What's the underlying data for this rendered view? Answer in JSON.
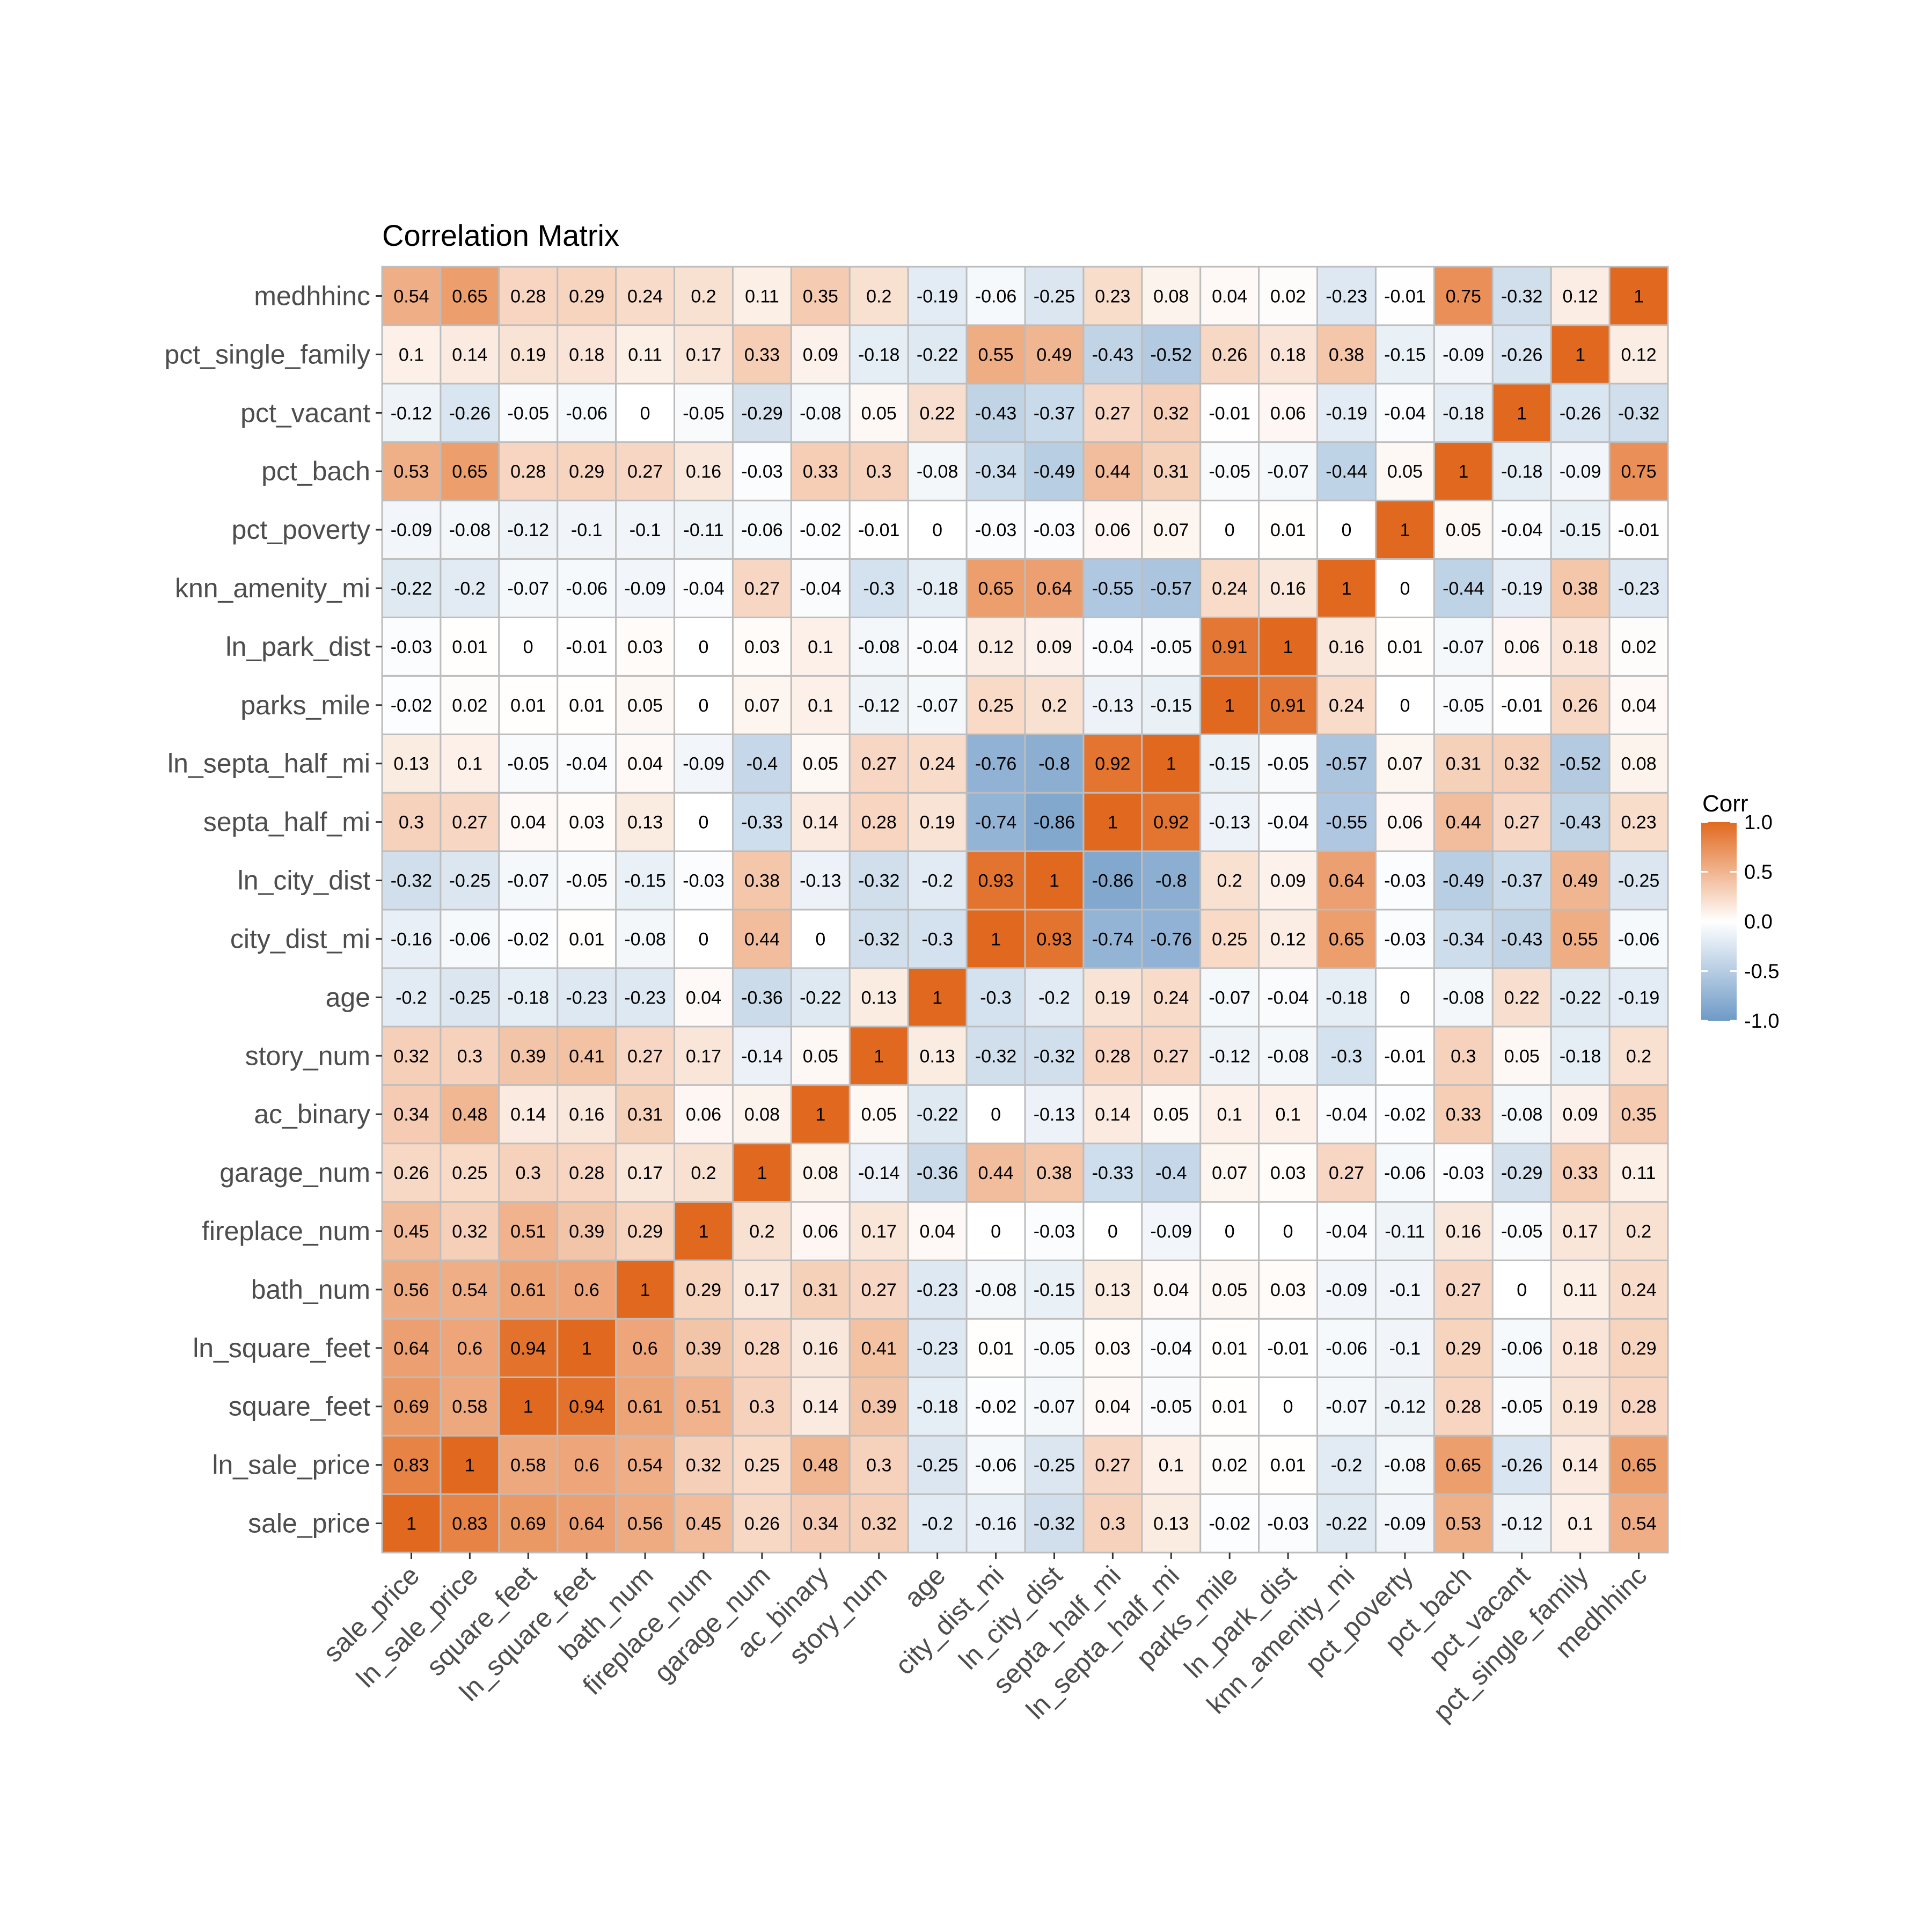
{
  "colors": {
    "low": "#6E9AC6",
    "mid": "#FFFFFF",
    "high": "#E1691F",
    "panel_bg": "#EBEBEB",
    "tile_border": "#BDBDBD"
  },
  "chart_data": {
    "type": "heatmap",
    "title": "Correlation Matrix",
    "xlabel": "",
    "ylabel": "",
    "legend": {
      "title": "Corr",
      "position": "right",
      "ticks": [
        "1.0",
        "0.5",
        "0.0",
        "-0.5",
        "-1.0"
      ],
      "range": [
        -1,
        1
      ]
    },
    "variables": [
      "sale_price",
      "ln_sale_price",
      "square_feet",
      "ln_square_feet",
      "bath_num",
      "fireplace_num",
      "garage_num",
      "ac_binary",
      "story_num",
      "age",
      "city_dist_mi",
      "ln_city_dist",
      "septa_half_mi",
      "ln_septa_half_mi",
      "parks_mile",
      "ln_park_dist",
      "knn_amenity_mi",
      "pct_poverty",
      "pct_bach",
      "pct_vacant",
      "pct_single_family",
      "medhhinc"
    ],
    "matrix": [
      [
        "1",
        "0.83",
        "0.69",
        "0.64",
        "0.56",
        "0.45",
        "0.26",
        "0.34",
        "0.32",
        "-0.2",
        "-0.16",
        "-0.32",
        "0.3",
        "0.13",
        "-0.02",
        "-0.03",
        "-0.22",
        "-0.09",
        "0.53",
        "-0.12",
        "0.1",
        "0.54"
      ],
      [
        "0.83",
        "1",
        "0.58",
        "0.6",
        "0.54",
        "0.32",
        "0.25",
        "0.48",
        "0.3",
        "-0.25",
        "-0.06",
        "-0.25",
        "0.27",
        "0.1",
        "0.02",
        "0.01",
        "-0.2",
        "-0.08",
        "0.65",
        "-0.26",
        "0.14",
        "0.65"
      ],
      [
        "0.69",
        "0.58",
        "1",
        "0.94",
        "0.61",
        "0.51",
        "0.3",
        "0.14",
        "0.39",
        "-0.18",
        "-0.02",
        "-0.07",
        "0.04",
        "-0.05",
        "0.01",
        "0",
        "-0.07",
        "-0.12",
        "0.28",
        "-0.05",
        "0.19",
        "0.28"
      ],
      [
        "0.64",
        "0.6",
        "0.94",
        "1",
        "0.6",
        "0.39",
        "0.28",
        "0.16",
        "0.41",
        "-0.23",
        "0.01",
        "-0.05",
        "0.03",
        "-0.04",
        "0.01",
        "-0.01",
        "-0.06",
        "-0.1",
        "0.29",
        "-0.06",
        "0.18",
        "0.29"
      ],
      [
        "0.56",
        "0.54",
        "0.61",
        "0.6",
        "1",
        "0.29",
        "0.17",
        "0.31",
        "0.27",
        "-0.23",
        "-0.08",
        "-0.15",
        "0.13",
        "0.04",
        "0.05",
        "0.03",
        "-0.09",
        "-0.1",
        "0.27",
        "0",
        "0.11",
        "0.24"
      ],
      [
        "0.45",
        "0.32",
        "0.51",
        "0.39",
        "0.29",
        "1",
        "0.2",
        "0.06",
        "0.17",
        "0.04",
        "0",
        "-0.03",
        "0",
        "-0.09",
        "0",
        "0",
        "-0.04",
        "-0.11",
        "0.16",
        "-0.05",
        "0.17",
        "0.2"
      ],
      [
        "0.26",
        "0.25",
        "0.3",
        "0.28",
        "0.17",
        "0.2",
        "1",
        "0.08",
        "-0.14",
        "-0.36",
        "0.44",
        "0.38",
        "-0.33",
        "-0.4",
        "0.07",
        "0.03",
        "0.27",
        "-0.06",
        "-0.03",
        "-0.29",
        "0.33",
        "0.11"
      ],
      [
        "0.34",
        "0.48",
        "0.14",
        "0.16",
        "0.31",
        "0.06",
        "0.08",
        "1",
        "0.05",
        "-0.22",
        "0",
        "-0.13",
        "0.14",
        "0.05",
        "0.1",
        "0.1",
        "-0.04",
        "-0.02",
        "0.33",
        "-0.08",
        "0.09",
        "0.35"
      ],
      [
        "0.32",
        "0.3",
        "0.39",
        "0.41",
        "0.27",
        "0.17",
        "-0.14",
        "0.05",
        "1",
        "0.13",
        "-0.32",
        "-0.32",
        "0.28",
        "0.27",
        "-0.12",
        "-0.08",
        "-0.3",
        "-0.01",
        "0.3",
        "0.05",
        "-0.18",
        "0.2"
      ],
      [
        "-0.2",
        "-0.25",
        "-0.18",
        "-0.23",
        "-0.23",
        "0.04",
        "-0.36",
        "-0.22",
        "0.13",
        "1",
        "-0.3",
        "-0.2",
        "0.19",
        "0.24",
        "-0.07",
        "-0.04",
        "-0.18",
        "0",
        "-0.08",
        "0.22",
        "-0.22",
        "-0.19"
      ],
      [
        "-0.16",
        "-0.06",
        "-0.02",
        "0.01",
        "-0.08",
        "0",
        "0.44",
        "0",
        "-0.32",
        "-0.3",
        "1",
        "0.93",
        "-0.74",
        "-0.76",
        "0.25",
        "0.12",
        "0.65",
        "-0.03",
        "-0.34",
        "-0.43",
        "0.55",
        "-0.06"
      ],
      [
        "-0.32",
        "-0.25",
        "-0.07",
        "-0.05",
        "-0.15",
        "-0.03",
        "0.38",
        "-0.13",
        "-0.32",
        "-0.2",
        "0.93",
        "1",
        "-0.86",
        "-0.8",
        "0.2",
        "0.09",
        "0.64",
        "-0.03",
        "-0.49",
        "-0.37",
        "0.49",
        "-0.25"
      ],
      [
        "0.3",
        "0.27",
        "0.04",
        "0.03",
        "0.13",
        "0",
        "-0.33",
        "0.14",
        "0.28",
        "0.19",
        "-0.74",
        "-0.86",
        "1",
        "0.92",
        "-0.13",
        "-0.04",
        "-0.55",
        "0.06",
        "0.44",
        "0.27",
        "-0.43",
        "0.23"
      ],
      [
        "0.13",
        "0.1",
        "-0.05",
        "-0.04",
        "0.04",
        "-0.09",
        "-0.4",
        "0.05",
        "0.27",
        "0.24",
        "-0.76",
        "-0.8",
        "0.92",
        "1",
        "-0.15",
        "-0.05",
        "-0.57",
        "0.07",
        "0.31",
        "0.32",
        "-0.52",
        "0.08"
      ],
      [
        "-0.02",
        "0.02",
        "0.01",
        "0.01",
        "0.05",
        "0",
        "0.07",
        "0.1",
        "-0.12",
        "-0.07",
        "0.25",
        "0.2",
        "-0.13",
        "-0.15",
        "1",
        "0.91",
        "0.24",
        "0",
        "-0.05",
        "-0.01",
        "0.26",
        "0.04"
      ],
      [
        "-0.03",
        "0.01",
        "0",
        "-0.01",
        "0.03",
        "0",
        "0.03",
        "0.1",
        "-0.08",
        "-0.04",
        "0.12",
        "0.09",
        "-0.04",
        "-0.05",
        "0.91",
        "1",
        "0.16",
        "0.01",
        "-0.07",
        "0.06",
        "0.18",
        "0.02"
      ],
      [
        "-0.22",
        "-0.2",
        "-0.07",
        "-0.06",
        "-0.09",
        "-0.04",
        "0.27",
        "-0.04",
        "-0.3",
        "-0.18",
        "0.65",
        "0.64",
        "-0.55",
        "-0.57",
        "0.24",
        "0.16",
        "1",
        "0",
        "-0.44",
        "-0.19",
        "0.38",
        "-0.23"
      ],
      [
        "-0.09",
        "-0.08",
        "-0.12",
        "-0.1",
        "-0.1",
        "-0.11",
        "-0.06",
        "-0.02",
        "-0.01",
        "0",
        "-0.03",
        "-0.03",
        "0.06",
        "0.07",
        "0",
        "0.01",
        "0",
        "1",
        "0.05",
        "-0.04",
        "-0.15",
        "-0.01"
      ],
      [
        "0.53",
        "0.65",
        "0.28",
        "0.29",
        "0.27",
        "0.16",
        "-0.03",
        "0.33",
        "0.3",
        "-0.08",
        "-0.34",
        "-0.49",
        "0.44",
        "0.31",
        "-0.05",
        "-0.07",
        "-0.44",
        "0.05",
        "1",
        "-0.18",
        "-0.09",
        "0.75"
      ],
      [
        "-0.12",
        "-0.26",
        "-0.05",
        "-0.06",
        "0",
        "-0.05",
        "-0.29",
        "-0.08",
        "0.05",
        "0.22",
        "-0.43",
        "-0.37",
        "0.27",
        "0.32",
        "-0.01",
        "0.06",
        "-0.19",
        "-0.04",
        "-0.18",
        "1",
        "-0.26",
        "-0.32"
      ],
      [
        "0.1",
        "0.14",
        "0.19",
        "0.18",
        "0.11",
        "0.17",
        "0.33",
        "0.09",
        "-0.18",
        "-0.22",
        "0.55",
        "0.49",
        "-0.43",
        "-0.52",
        "0.26",
        "0.18",
        "0.38",
        "-0.15",
        "-0.09",
        "-0.26",
        "1",
        "0.12"
      ],
      [
        "0.54",
        "0.65",
        "0.28",
        "0.29",
        "0.24",
        "0.2",
        "0.11",
        "0.35",
        "0.2",
        "-0.19",
        "-0.06",
        "-0.25",
        "0.23",
        "0.08",
        "0.04",
        "0.02",
        "-0.23",
        "-0.01",
        "0.75",
        "-0.32",
        "0.12",
        "1"
      ]
    ]
  }
}
